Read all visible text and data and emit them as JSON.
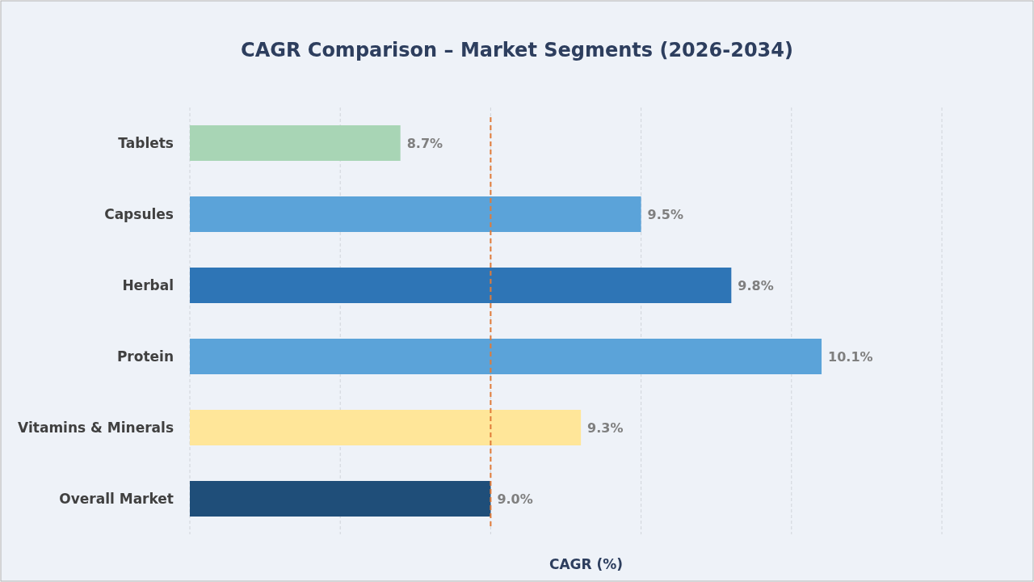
{
  "chart_data": {
    "type": "bar",
    "orientation": "horizontal",
    "title": "CAGR Comparison – Market Segments (2026-2034)",
    "xlabel": "CAGR (%)",
    "categories": [
      "Tablets",
      "Capsules",
      "Herbal",
      "Protein",
      "Vitamins & Minerals",
      "Overall Market"
    ],
    "values": [
      8.7,
      9.5,
      9.8,
      10.1,
      9.3,
      9.0
    ],
    "colors": [
      "#a8d5b5",
      "#5ba3d9",
      "#2e75b6",
      "#5ba3d9",
      "#ffe699",
      "#1f4e79"
    ],
    "value_labels": [
      "8.7%",
      "9.5%",
      "9.8%",
      "10.1%",
      "9.3%",
      "9.0%"
    ],
    "xlim": [
      8,
      10.5
    ],
    "xticks": [
      {
        "value": 8,
        "label": null
      },
      {
        "value": 8.5,
        "label": null
      },
      {
        "value": 9,
        "label": null
      },
      {
        "value": 9.5,
        "label": null
      },
      {
        "value": 10,
        "label": null
      },
      {
        "value": 10.5,
        "label": null
      }
    ],
    "tick_labels": "y",
    "grid": "x",
    "ref_lines": [
      {
        "axis": "x",
        "value": 9.0,
        "color": "#e07b39",
        "line_style": "dashed"
      }
    ]
  }
}
